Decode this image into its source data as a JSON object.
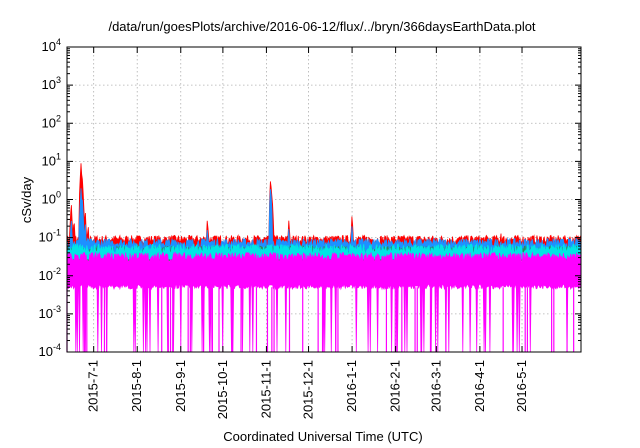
{
  "chart_data": {
    "type": "area",
    "title": "/data/run/goesPlots/archive/2016-06-12/flux/../bryn/366daysEarthData.plot",
    "xlabel": "Coordinated Universal Time (UTC)",
    "ylabel": "cSv/day",
    "x_scale": "time",
    "y_scale": "log",
    "xlim": [
      "2015-06-12",
      "2016-06-12"
    ],
    "ylim": [
      0.0001,
      10000
    ],
    "y_ticks": [
      {
        "value": 0.0001,
        "mantissa": "10",
        "exponent": "-4"
      },
      {
        "value": 0.001,
        "mantissa": "10",
        "exponent": "-3"
      },
      {
        "value": 0.01,
        "mantissa": "10",
        "exponent": "-2"
      },
      {
        "value": 0.1,
        "mantissa": "10",
        "exponent": "-1"
      },
      {
        "value": 1,
        "mantissa": "10",
        "exponent": "0"
      },
      {
        "value": 10,
        "mantissa": "10",
        "exponent": "1"
      },
      {
        "value": 100,
        "mantissa": "10",
        "exponent": "2"
      },
      {
        "value": 1000,
        "mantissa": "10",
        "exponent": "3"
      },
      {
        "value": 10000,
        "mantissa": "10",
        "exponent": "4"
      }
    ],
    "x_ticks": [
      {
        "date": "2015-07-01",
        "label": "2015-7-1"
      },
      {
        "date": "2015-08-01",
        "label": "2015-8-1"
      },
      {
        "date": "2015-09-01",
        "label": "2015-9-1"
      },
      {
        "date": "2015-10-01",
        "label": "2015-10-1"
      },
      {
        "date": "2015-11-01",
        "label": "2015-11-1"
      },
      {
        "date": "2015-12-01",
        "label": "2015-12-1"
      },
      {
        "date": "2016-01-01",
        "label": "2016-1-1"
      },
      {
        "date": "2016-02-01",
        "label": "2016-2-1"
      },
      {
        "date": "2016-03-01",
        "label": "2016-3-1"
      },
      {
        "date": "2016-04-01",
        "label": "2016-4-1"
      },
      {
        "date": "2016-05-01",
        "label": "2016-5-1"
      }
    ],
    "grid": true,
    "series": [
      {
        "color": "#ff0000",
        "baseline": 0.085,
        "spikes": [
          {
            "date": "2015-06-15",
            "value": 0.9
          },
          {
            "date": "2015-06-17",
            "value": 0.35
          },
          {
            "date": "2015-06-22",
            "value": 10
          },
          {
            "date": "2015-06-23",
            "value": 3.5
          },
          {
            "date": "2015-06-25",
            "value": 0.5
          },
          {
            "date": "2015-06-27",
            "value": 0.25
          },
          {
            "date": "2015-06-29",
            "value": 0.15
          },
          {
            "date": "2015-09-20",
            "value": 0.35
          },
          {
            "date": "2015-11-04",
            "value": 4
          },
          {
            "date": "2015-11-05",
            "value": 1.5
          },
          {
            "date": "2015-11-17",
            "value": 0.33
          },
          {
            "date": "2016-01-01",
            "value": 0.45
          },
          {
            "date": "2016-04-16",
            "value": 0.13
          }
        ]
      },
      {
        "color": "#1e90ff",
        "baseline": 0.07,
        "spikes": [
          {
            "date": "2015-06-15",
            "value": 0.35
          },
          {
            "date": "2015-06-22",
            "value": 2.2
          },
          {
            "date": "2015-06-23",
            "value": 1.0
          },
          {
            "date": "2015-06-25",
            "value": 0.25
          },
          {
            "date": "2015-09-20",
            "value": 0.2
          },
          {
            "date": "2015-11-04",
            "value": 2.5
          },
          {
            "date": "2015-11-17",
            "value": 0.2
          },
          {
            "date": "2016-01-01",
            "value": 0.25
          }
        ]
      },
      {
        "color": "#2e8b57",
        "baseline": 0.045,
        "spikes": []
      },
      {
        "color": "#00e5e5",
        "baseline": 0.05,
        "spikes": []
      },
      {
        "color": "#ff00ff",
        "baseline": 0.03,
        "floor": 0.005,
        "dropouts_to": 0.0001,
        "spikes": []
      }
    ]
  }
}
